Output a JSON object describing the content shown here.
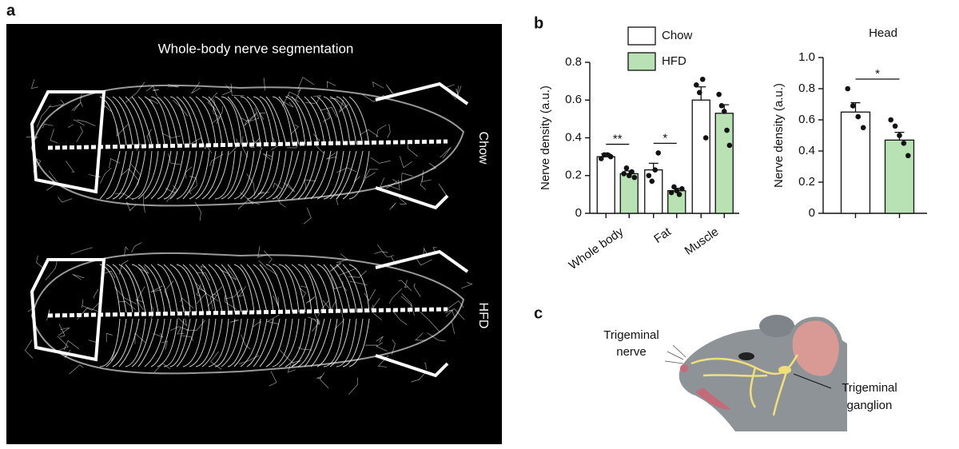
{
  "panels": {
    "a": {
      "letter": "a",
      "title": "Whole-body nerve segmentation",
      "top_label": "Chow",
      "bottom_label": "HFD"
    },
    "b": {
      "letter": "b"
    },
    "c": {
      "letter": "c",
      "labels": [
        [
          "Trigeminal",
          "nerve"
        ],
        [
          "Trigeminal",
          "ganglion"
        ]
      ]
    }
  },
  "chart_data": [
    {
      "type": "bar",
      "ylabel": "Nerve density (a.u.)",
      "categories": [
        "Whole body",
        "Fat",
        "Muscle"
      ],
      "series": [
        {
          "name": "Chow",
          "color": "#ffffff",
          "values": [
            0.3,
            0.23,
            0.6
          ],
          "errors": [
            0.015,
            0.035,
            0.07
          ],
          "points": [
            [
              0.29,
              0.31,
              0.31,
              0.3
            ],
            [
              0.2,
              0.17,
              0.23,
              0.32
            ],
            [
              0.68,
              0.64,
              0.71,
              0.4
            ]
          ]
        },
        {
          "name": "HFD",
          "color": "#b9e2b4",
          "values": [
            0.21,
            0.12,
            0.53
          ],
          "errors": [
            0.015,
            0.012,
            0.045
          ],
          "points": [
            [
              0.21,
              0.24,
              0.2,
              0.22,
              0.19
            ],
            [
              0.11,
              0.14,
              0.12,
              0.1,
              0.13
            ],
            [
              0.63,
              0.57,
              0.54,
              0.44,
              0.36
            ]
          ]
        }
      ],
      "ylim": [
        0,
        0.8
      ],
      "yticks": [
        0,
        0.2,
        0.4,
        0.6,
        0.8
      ],
      "annotations": [
        {
          "category": "Whole body",
          "text": "**"
        },
        {
          "category": "Fat",
          "text": "*"
        }
      ]
    },
    {
      "type": "bar",
      "title": "Head",
      "ylabel": "Nerve density (a.u.)",
      "categories": [
        null
      ],
      "series": [
        {
          "name": "Chow",
          "color": "#ffffff",
          "values": [
            0.65
          ],
          "errors": [
            0.06
          ],
          "points": [
            [
              0.8,
              0.69,
              0.62,
              0.55
            ]
          ]
        },
        {
          "name": "HFD",
          "color": "#b9e2b4",
          "values": [
            0.47
          ],
          "errors": [
            0.05
          ],
          "points": [
            [
              0.6,
              0.56,
              0.5,
              0.45,
              0.37
            ]
          ]
        }
      ],
      "ylim": [
        0,
        1.0
      ],
      "yticks": [
        0,
        0.2,
        0.4,
        0.6,
        0.8,
        {
          "value": 1.0,
          "label": "1.0"
        }
      ],
      "annotations": [
        {
          "category": null,
          "text": "*"
        }
      ]
    }
  ]
}
